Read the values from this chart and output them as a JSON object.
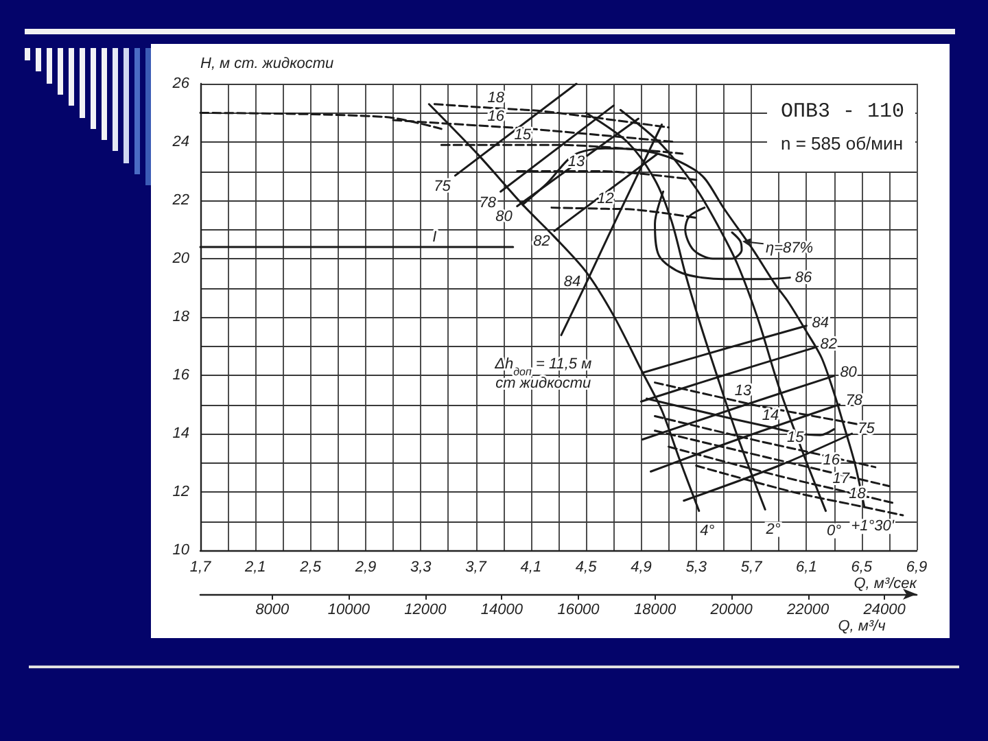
{
  "chart_data": {
    "type": "line",
    "title": "ОПВ3 - 110",
    "subtitle": "n = 585 об/мин",
    "xlabel": "Q, м³/сек",
    "ylabel": "H, м ст. жидкости",
    "x2label": "Q, м³/ч",
    "xlim": [
      1.7,
      6.9
    ],
    "xticks": [
      {
        "value": 1.7,
        "label": "1,7"
      },
      {
        "value": 1.9,
        "label": null
      },
      {
        "value": 2.1,
        "label": "2,1"
      },
      {
        "value": 2.3,
        "label": null
      },
      {
        "value": 2.5,
        "label": "2,5"
      },
      {
        "value": 2.7,
        "label": null
      },
      {
        "value": 2.9,
        "label": "2,9"
      },
      {
        "value": 3.1,
        "label": null
      },
      {
        "value": 3.3,
        "label": "3,3"
      },
      {
        "value": 3.5,
        "label": null
      },
      {
        "value": 3.7,
        "label": "3,7"
      },
      {
        "value": 3.9,
        "label": null
      },
      {
        "value": 4.1,
        "label": "4,1"
      },
      {
        "value": 4.3,
        "label": null
      },
      {
        "value": 4.5,
        "label": "4,5"
      },
      {
        "value": 4.7,
        "label": null
      },
      {
        "value": 4.9,
        "label": "4,9"
      },
      {
        "value": 5.1,
        "label": null
      },
      {
        "value": 5.3,
        "label": "5,3"
      },
      {
        "value": 5.5,
        "label": null
      },
      {
        "value": 5.7,
        "label": "5,7"
      },
      {
        "value": 5.9,
        "label": null
      },
      {
        "value": 6.1,
        "label": "6,1"
      },
      {
        "value": 6.3,
        "label": null
      },
      {
        "value": 6.5,
        "label": "6,5"
      },
      {
        "value": 6.7,
        "label": null
      },
      {
        "value": 6.9,
        "label": "6,9"
      }
    ],
    "ylim": [
      10,
      26
    ],
    "yticks": [
      10,
      {
        "value": 11,
        "label": null
      },
      12,
      {
        "value": 13,
        "label": null
      },
      14,
      {
        "value": 15,
        "label": null
      },
      16,
      {
        "value": 17,
        "label": null
      },
      18,
      {
        "value": 19,
        "label": null
      },
      20,
      {
        "value": 21,
        "label": null
      },
      22,
      {
        "value": 23,
        "label": null
      },
      24,
      {
        "value": 25,
        "label": null
      },
      26
    ],
    "x2lim": [
      6120,
      24840
    ],
    "x2ticks": [
      8000,
      10000,
      12000,
      14000,
      16000,
      18000,
      20000,
      22000,
      24000
    ],
    "grid": true,
    "marker": "none",
    "series": [
      {
        "name": "4°",
        "color": "#1a1a1a",
        "x": [
          3.36,
          3.72,
          4.04,
          4.27,
          4.5,
          4.7,
          4.91,
          5.05,
          5.18,
          5.32
        ],
        "values": [
          25.3,
          23.55,
          21.85,
          20.75,
          19.55,
          18.05,
          16.1,
          14.8,
          13.1,
          11.35
        ]
      },
      {
        "name": "2°",
        "color": "#1a1a1a",
        "x": [
          4.5,
          4.8,
          5.0,
          5.12,
          5.22,
          5.32,
          5.45,
          5.6,
          5.8
        ],
        "values": [
          25.0,
          24.0,
          22.7,
          21.3,
          19.5,
          17.9,
          16.0,
          13.9,
          11.4
        ]
      },
      {
        "name": "0°",
        "color": "#1a1a1a",
        "x": [
          4.75,
          5.05,
          5.3,
          5.45,
          5.6,
          5.75,
          5.9,
          6.07,
          6.24
        ],
        "values": [
          25.1,
          23.9,
          22.4,
          21.2,
          19.8,
          17.9,
          15.6,
          13.4,
          11.35
        ]
      },
      {
        "name": "+1°30'",
        "color": "#1a1a1a",
        "x": [
          4.04,
          4.22,
          4.41,
          4.64,
          4.86,
          5.09,
          5.28,
          5.37,
          5.5,
          5.71,
          5.87,
          5.97,
          6.1,
          6.21,
          6.3,
          6.37,
          6.45,
          6.52
        ],
        "values": [
          21.85,
          22.6,
          23.55,
          23.78,
          23.74,
          23.5,
          23.07,
          22.7,
          21.73,
          20.32,
          19.14,
          18.5,
          17.5,
          16.6,
          15.4,
          14.3,
          13.0,
          11.5
        ]
      },
      {
        "color": "#1a1a1a",
        "x": [
          5.36,
          5.25,
          5.22,
          5.28,
          5.42,
          5.56,
          5.63,
          5.62,
          5.56
        ],
        "values": [
          21.75,
          21.45,
          21.0,
          20.3,
          20.0,
          20.0,
          20.3,
          20.6,
          20.9
        ]
      },
      {
        "color": "#1a1a1a",
        "x": [
          5.06,
          5.0,
          5.03,
          5.2,
          5.5,
          5.8,
          5.98
        ],
        "values": [
          22.3,
          21.2,
          20.1,
          19.5,
          19.3,
          19.3,
          19.35
        ]
      },
      {
        "color": "#1a1a1a",
        "x": [
          3.55,
          4.43
        ],
        "values": [
          22.85,
          26.0
        ]
      },
      {
        "color": "#1a1a1a",
        "x": [
          3.88,
          4.7
        ],
        "values": [
          22.3,
          25.25
        ]
      },
      {
        "color": "#1a1a1a",
        "x": [
          4.0,
          4.88
        ],
        "values": [
          21.8,
          24.8
        ]
      },
      {
        "color": "#1a1a1a",
        "x": [
          4.27,
          5.02
        ],
        "values": [
          20.95,
          23.6
        ]
      },
      {
        "color": "#1a1a1a",
        "x": [
          4.92,
          5.5,
          6.1
        ],
        "values": [
          16.1,
          16.9,
          17.7
        ]
      },
      {
        "color": "#1a1a1a",
        "x": [
          4.9,
          5.5,
          6.16
        ],
        "values": [
          15.1,
          16.0,
          16.95
        ]
      },
      {
        "color": "#1a1a1a",
        "x": [
          4.91,
          5.6,
          6.3
        ],
        "values": [
          13.8,
          14.9,
          15.98
        ]
      },
      {
        "color": "#1a1a1a",
        "x": [
          4.97,
          5.6,
          6.34
        ],
        "values": [
          12.7,
          13.8,
          15.0
        ]
      },
      {
        "color": "#1a1a1a",
        "x": [
          5.21,
          5.9,
          6.43
        ],
        "values": [
          11.7,
          12.9,
          14.0
        ]
      },
      {
        "color": "#1a1a1a",
        "line_style": "dashed",
        "x": [
          5.0,
          5.62,
          5.75,
          6.5
        ],
        "values": [
          15.75,
          15.09,
          14.95,
          14.3
        ]
      },
      {
        "color": "#1a1a1a",
        "x": [
          4.94,
          5.57,
          5.82,
          6.05,
          6.2,
          6.3
        ],
        "values": [
          15.2,
          14.5,
          14.24,
          14.0,
          13.95,
          14.15
        ]
      },
      {
        "color": "#1a1a1a",
        "line_style": "dashed",
        "x": [
          5.0,
          5.75,
          6.0,
          6.6
        ],
        "values": [
          14.6,
          13.75,
          13.49,
          12.85
        ]
      },
      {
        "color": "#1a1a1a",
        "line_style": "dashed",
        "x": [
          5.0,
          5.8,
          6.26,
          6.7
        ],
        "values": [
          14.1,
          13.2,
          12.69,
          12.2
        ]
      },
      {
        "color": "#1a1a1a",
        "line_style": "dashed",
        "x": [
          5.1,
          5.9,
          6.33,
          6.75
        ],
        "values": [
          13.55,
          12.55,
          12.07,
          11.6
        ]
      },
      {
        "color": "#1a1a1a",
        "line_style": "dashed",
        "x": [
          5.3,
          6.0,
          6.45,
          6.8
        ],
        "values": [
          12.9,
          12.0,
          11.55,
          11.2
        ]
      },
      {
        "color": "#1a1a1a",
        "line_style": "dashed",
        "x": [
          3.4,
          3.84,
          4.2,
          5.1
        ],
        "values": [
          25.3,
          25.16,
          25.05,
          24.5
        ]
      },
      {
        "color": "#1a1a1a",
        "line_style": "dashed",
        "x": [
          3.1,
          3.84,
          4.1,
          5.15
        ],
        "values": [
          24.75,
          24.53,
          24.45,
          24.0
        ]
      },
      {
        "color": "#1a1a1a",
        "line_style": "dashed",
        "x": [
          3.45,
          4.04,
          4.3,
          5.2
        ],
        "values": [
          23.9,
          23.9,
          23.9,
          23.6
        ]
      },
      {
        "color": "#1a1a1a",
        "line_style": "dashed",
        "x": [
          4.0,
          4.43,
          4.6,
          5.3
        ],
        "values": [
          23.0,
          23.0,
          23.0,
          22.7
        ]
      },
      {
        "color": "#1a1a1a",
        "line_style": "dashed",
        "x": [
          4.25,
          4.64,
          4.8,
          5.3
        ],
        "values": [
          21.75,
          21.71,
          21.7,
          21.4
        ]
      },
      {
        "color": "#1a1a1a",
        "line_style": "dashed",
        "x": [
          1.7,
          3.04,
          3.45
        ],
        "values": [
          25.0,
          24.86,
          24.45
        ]
      },
      {
        "color": "#1a1a1a",
        "x": [
          1.7,
          3.4,
          3.97
        ],
        "values": [
          20.4,
          20.4,
          20.4
        ]
      },
      {
        "color": "#1a1a1a",
        "x": [
          4.32,
          4.49,
          4.71,
          5.05
        ],
        "values": [
          17.38,
          19.05,
          21.26,
          24.6
        ]
      }
    ],
    "annotations": [
      {
        "text": "75",
        "x": 3.55,
        "y": 22.85
      },
      {
        "text": "78",
        "x": 3.88,
        "y": 22.3
      },
      {
        "text": "80",
        "x": 4.0,
        "y": 21.8
      },
      {
        "text": "82",
        "x": 4.27,
        "y": 20.95
      },
      {
        "text": "84",
        "x": 4.49,
        "y": 19.05
      },
      {
        "text": "86",
        "x": 5.98,
        "y": 19.35
      },
      {
        "text": "84",
        "x": 6.1,
        "y": 17.7
      },
      {
        "text": "82",
        "x": 6.16,
        "y": 16.95
      },
      {
        "text": "80",
        "x": 6.3,
        "y": 15.98
      },
      {
        "text": "78",
        "x": 6.34,
        "y": 15.0
      },
      {
        "text": "75",
        "x": 6.43,
        "y": 14.0
      },
      {
        "text": "η=87%",
        "x": 5.62,
        "y": 20.6
      },
      {
        "text": "13",
        "x": 5.62,
        "y": 15.09
      },
      {
        "text": "14",
        "x": 5.82,
        "y": 14.24
      },
      {
        "text": "15",
        "x": 6.0,
        "y": 13.49
      },
      {
        "text": "16",
        "x": 6.26,
        "y": 12.69
      },
      {
        "text": "17",
        "x": 6.33,
        "y": 12.07
      },
      {
        "text": "18",
        "x": 6.45,
        "y": 11.55
      },
      {
        "text": "18",
        "x": 3.84,
        "y": 25.16
      },
      {
        "text": "16",
        "x": 3.84,
        "y": 24.53
      },
      {
        "text": "15",
        "x": 4.04,
        "y": 23.9
      },
      {
        "text": "13",
        "x": 4.43,
        "y": 23.0
      },
      {
        "text": "12",
        "x": 4.64,
        "y": 21.71
      },
      {
        "text": "I",
        "x": 3.4,
        "y": 20.4
      },
      {
        "text": "Δh$_{доп}$ = 11,5 м ст жидкости",
        "x": 4.32,
        "y": 17.38
      }
    ]
  }
}
